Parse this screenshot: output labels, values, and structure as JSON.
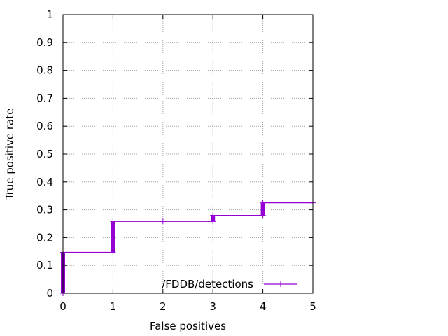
{
  "chart_data": {
    "type": "line",
    "title": "",
    "xlabel": "False positives",
    "ylabel": "True positive rate",
    "xlim": [
      0,
      5
    ],
    "ylim": [
      0,
      1
    ],
    "x_ticks": [
      "0",
      "1",
      "2",
      "3",
      "4",
      "5"
    ],
    "y_ticks": [
      "0",
      "0.1",
      "0.2",
      "0.3",
      "0.4",
      "0.5",
      "0.6",
      "0.7",
      "0.8",
      "0.9",
      "1"
    ],
    "grid": true,
    "legend_position": "bottom-right",
    "series": [
      {
        "name": "/FDDB/detections",
        "color": "#9400d3",
        "step": true,
        "points": [
          [
            0,
            0
          ],
          [
            0,
            0.147
          ],
          [
            1,
            0.147
          ],
          [
            1,
            0.258
          ],
          [
            2,
            0.258
          ],
          [
            3,
            0.258
          ],
          [
            3,
            0.28
          ],
          [
            4,
            0.28
          ],
          [
            4,
            0.325
          ],
          [
            5,
            0.325
          ]
        ]
      }
    ]
  }
}
